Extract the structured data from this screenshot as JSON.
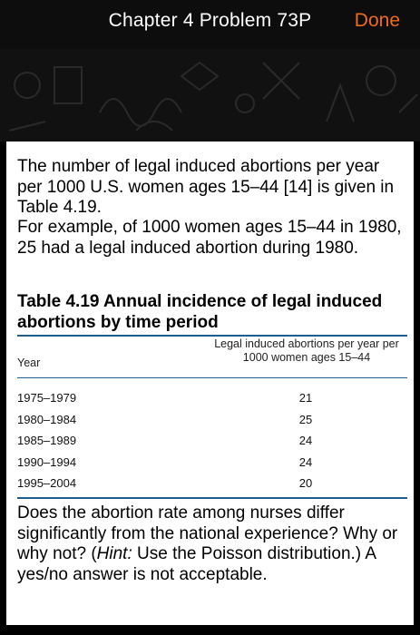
{
  "header": {
    "title": "Chapter 4 Problem 73P",
    "done_label": "Done"
  },
  "problem": {
    "paragraph1": "The number of legal induced abortions per year per 1000 U.S. women ages 15–44 [14] is given in Table 4.19.",
    "paragraph2": "For example, of 1000 women ages 15–44 in 1980, 25 had a legal induced abortion during 1980.",
    "table_title": "Table 4.19 Annual incidence of legal induced abortions by time period",
    "table": {
      "columns": [
        "Year",
        "Legal induced abortions per year per 1000 women ages 15–44"
      ],
      "rows": [
        {
          "year": "1975–1979",
          "value": "21"
        },
        {
          "year": "1980–1984",
          "value": "25"
        },
        {
          "year": "1985–1989",
          "value": "24"
        },
        {
          "year": "1990–1994",
          "value": "24"
        },
        {
          "year": "1995–2004",
          "value": "20"
        }
      ]
    },
    "paragraph3": "Does the abortion rate among nurses differ significantly from the national experience? Why or why not? (Hint: Use the Poisson distribution.) A yes/no answer is not acceptable.",
    "paragraph3_parts": {
      "before_hint": "Does the abortion rate among nurses differ significantly from the national experience? Why or why not? (",
      "hint_label": "Hint:",
      "after_hint": " Use the Poisson distribution.) A yes/no answer is not acceptable."
    }
  },
  "colors": {
    "header_bg": "#0d0d0d",
    "accent_orange": "#f26b1d",
    "table_rule": "#1d5d8f",
    "card_bg": "#ffffff"
  }
}
